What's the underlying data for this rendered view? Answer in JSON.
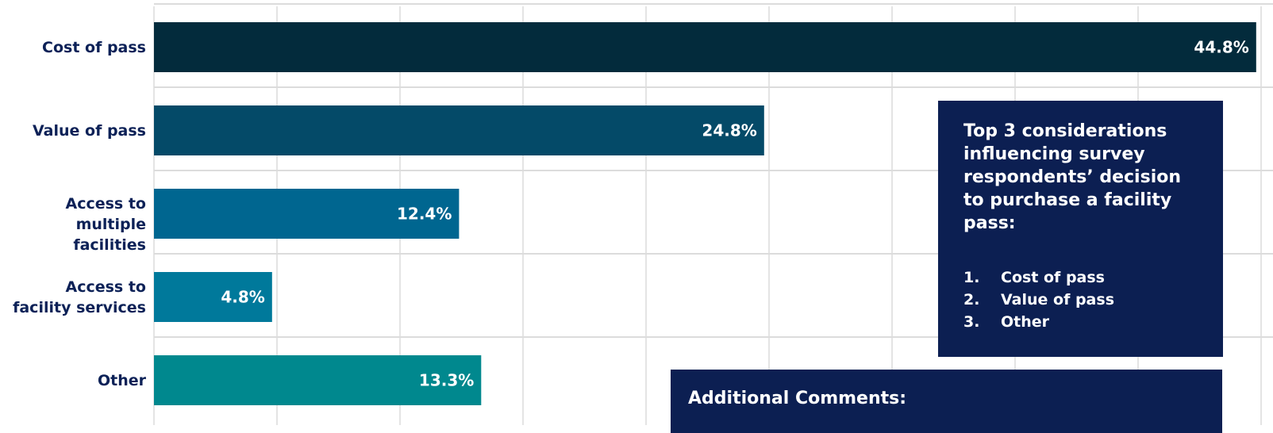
{
  "chart_data": {
    "type": "hbar",
    "categories": [
      "Cost of pass",
      "Value of pass",
      "Access to\nmultiple facilities",
      "Access to\nfacility services",
      "Other"
    ],
    "values": [
      44.8,
      24.8,
      12.4,
      4.8,
      13.3
    ],
    "value_labels": [
      "44.8%",
      "24.8%",
      "12.4%",
      "4.8%",
      "13.3%"
    ],
    "colors": [
      "#032b3c",
      "#044a68",
      "#006690",
      "#00799b",
      "#00888e"
    ],
    "xlim": [
      0,
      45
    ],
    "xticks": [
      0,
      5,
      10,
      15,
      20,
      25,
      30,
      35,
      40,
      45
    ],
    "grid": true,
    "summary_box": {
      "title": "Top 3 considerations influencing survey respondents’ decision to purchase a facility pass:",
      "items": [
        {
          "number": "1.",
          "text": "Cost of pass"
        },
        {
          "number": "2.",
          "text": "Value of pass"
        },
        {
          "number": "3.",
          "text": "Other"
        }
      ]
    },
    "comments_box": {
      "title": "Additional Comments:"
    }
  }
}
